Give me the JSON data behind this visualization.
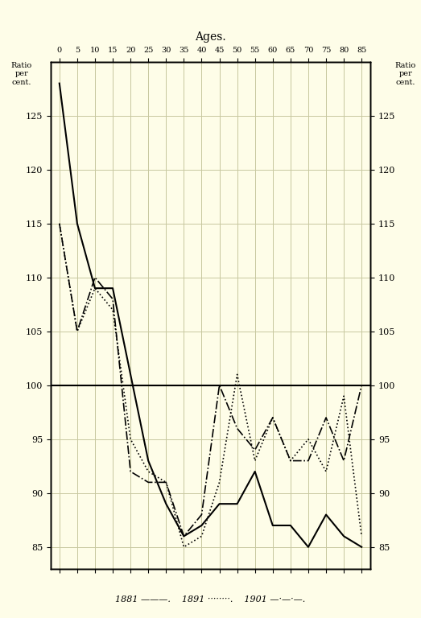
{
  "title": "Ages.",
  "xlabel_top": "0 - 5 - 10 - 15 - 20 - 25 - 30 - 35 - 40 - 45 - 50 - 55 - 60 - 65 - 70 - 75 - 80 - 85-",
  "ylabel_left": "Ratio\nper\ncent.",
  "ylabel_right": "Ratio\nper\ncent.",
  "ylim": [
    83,
    130
  ],
  "yticks": [
    85,
    90,
    95,
    100,
    105,
    110,
    115,
    120,
    125
  ],
  "age_groups": [
    0,
    5,
    10,
    15,
    20,
    25,
    30,
    35,
    40,
    45,
    50,
    55,
    60,
    65,
    70,
    75,
    80,
    85
  ],
  "data_1881": [
    128,
    115,
    109,
    109,
    101,
    93,
    89,
    86,
    87,
    89,
    89,
    92,
    87,
    87,
    85,
    88,
    86,
    85
  ],
  "data_1891": [
    115,
    105,
    109,
    107,
    95,
    92,
    91,
    85,
    86,
    91,
    101,
    93,
    97,
    93,
    95,
    92,
    99,
    86
  ],
  "data_1901": [
    115,
    105,
    110,
    108,
    92,
    91,
    91,
    86,
    88,
    100,
    96,
    94,
    97,
    93,
    93,
    97,
    93,
    100
  ],
  "color_1881": "#000000",
  "color_1891": "#000000",
  "color_1901": "#000000",
  "background_color": "#fefde8",
  "grid_color": "#c8c8a0",
  "hline_color": "#000000",
  "legend_1881": "1881",
  "legend_1891": "1891",
  "legend_1901": "1901",
  "footer_text": "1881 ———.  1891 ········.  1901 —·—·—."
}
